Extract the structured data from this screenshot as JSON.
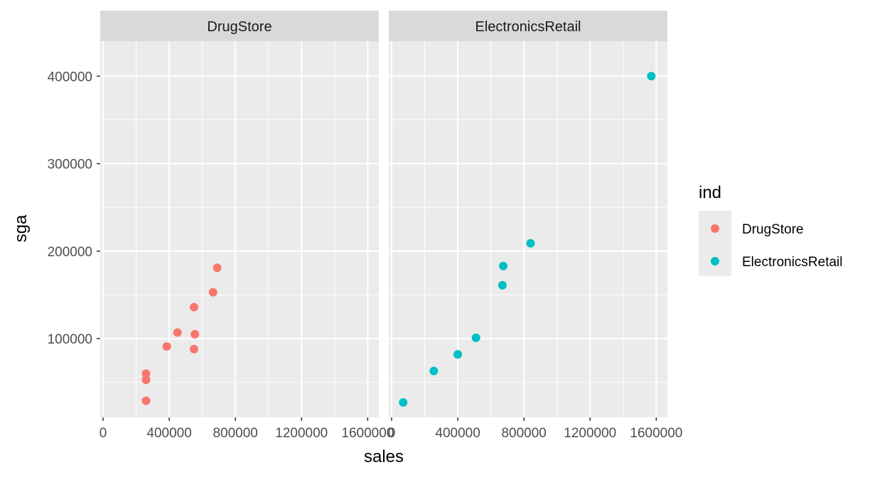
{
  "chart_data": {
    "type": "scatter",
    "xlabel": "sales",
    "ylabel": "sga",
    "xlim": [
      0,
      1650000
    ],
    "ylim": [
      10000,
      440000
    ],
    "x_ticks": [
      0,
      400000,
      800000,
      1200000,
      1600000
    ],
    "x_tick_labels": [
      "0",
      "400000",
      "800000",
      "1200000",
      "1600000"
    ],
    "y_ticks": [
      100000,
      200000,
      300000,
      400000
    ],
    "y_tick_labels": [
      "100000",
      "200000",
      "300000",
      "400000"
    ],
    "grid": true,
    "legend": {
      "title": "ind",
      "placement": "right",
      "entries": [
        {
          "label": "DrugStore",
          "color": "#F8766D"
        },
        {
          "label": "ElectronicsRetail",
          "color": "#00BFC4"
        }
      ]
    },
    "panels": [
      {
        "title": "DrugStore",
        "color": "#F8766D",
        "points": [
          {
            "x": 260000,
            "y": 60000
          },
          {
            "x": 260000,
            "y": 53000
          },
          {
            "x": 260000,
            "y": 29000
          },
          {
            "x": 385000,
            "y": 91000
          },
          {
            "x": 450000,
            "y": 107000
          },
          {
            "x": 550000,
            "y": 136000
          },
          {
            "x": 555000,
            "y": 105000
          },
          {
            "x": 550000,
            "y": 88000
          },
          {
            "x": 665000,
            "y": 153000
          },
          {
            "x": 690000,
            "y": 181000
          }
        ]
      },
      {
        "title": "ElectronicsRetail",
        "color": "#00BFC4",
        "points": [
          {
            "x": 70000,
            "y": 27000
          },
          {
            "x": 255000,
            "y": 63000
          },
          {
            "x": 400000,
            "y": 82000
          },
          {
            "x": 510000,
            "y": 101000
          },
          {
            "x": 670000,
            "y": 161000
          },
          {
            "x": 675000,
            "y": 183000
          },
          {
            "x": 840000,
            "y": 209000
          },
          {
            "x": 1570000,
            "y": 400000
          }
        ]
      }
    ]
  }
}
